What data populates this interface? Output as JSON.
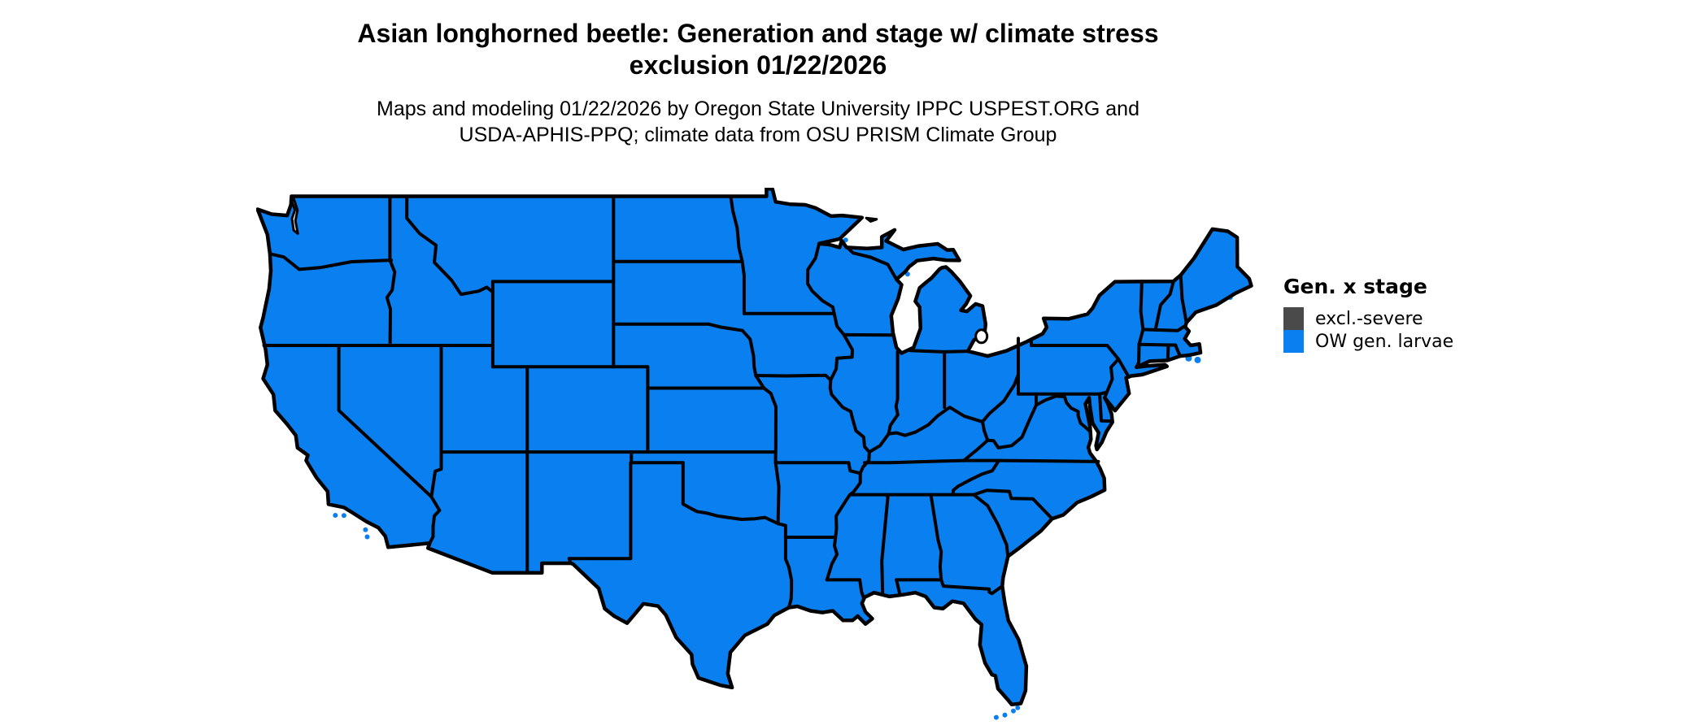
{
  "title": {
    "line1": "Asian longhorned beetle: Generation and stage w/ climate stress",
    "line2": "exclusion 01/22/2026"
  },
  "subtitle": {
    "line1": "Maps and modeling 01/22/2026 by Oregon State University IPPC USPEST.ORG and",
    "line2": "USDA-APHIS-PPQ; climate data from OSU PRISM Climate Group"
  },
  "legend": {
    "title": "Gen. x stage",
    "items": [
      {
        "label": "excl.-severe",
        "color": "#4A4A4A"
      },
      {
        "label": "OW gen. larvae",
        "color": "#0A80F0"
      }
    ]
  },
  "map": {
    "description": "Contiguous United States with state boundaries",
    "land_fill": "#0A80F0",
    "border_color": "#000000",
    "water_color": "#FFFFFF"
  }
}
